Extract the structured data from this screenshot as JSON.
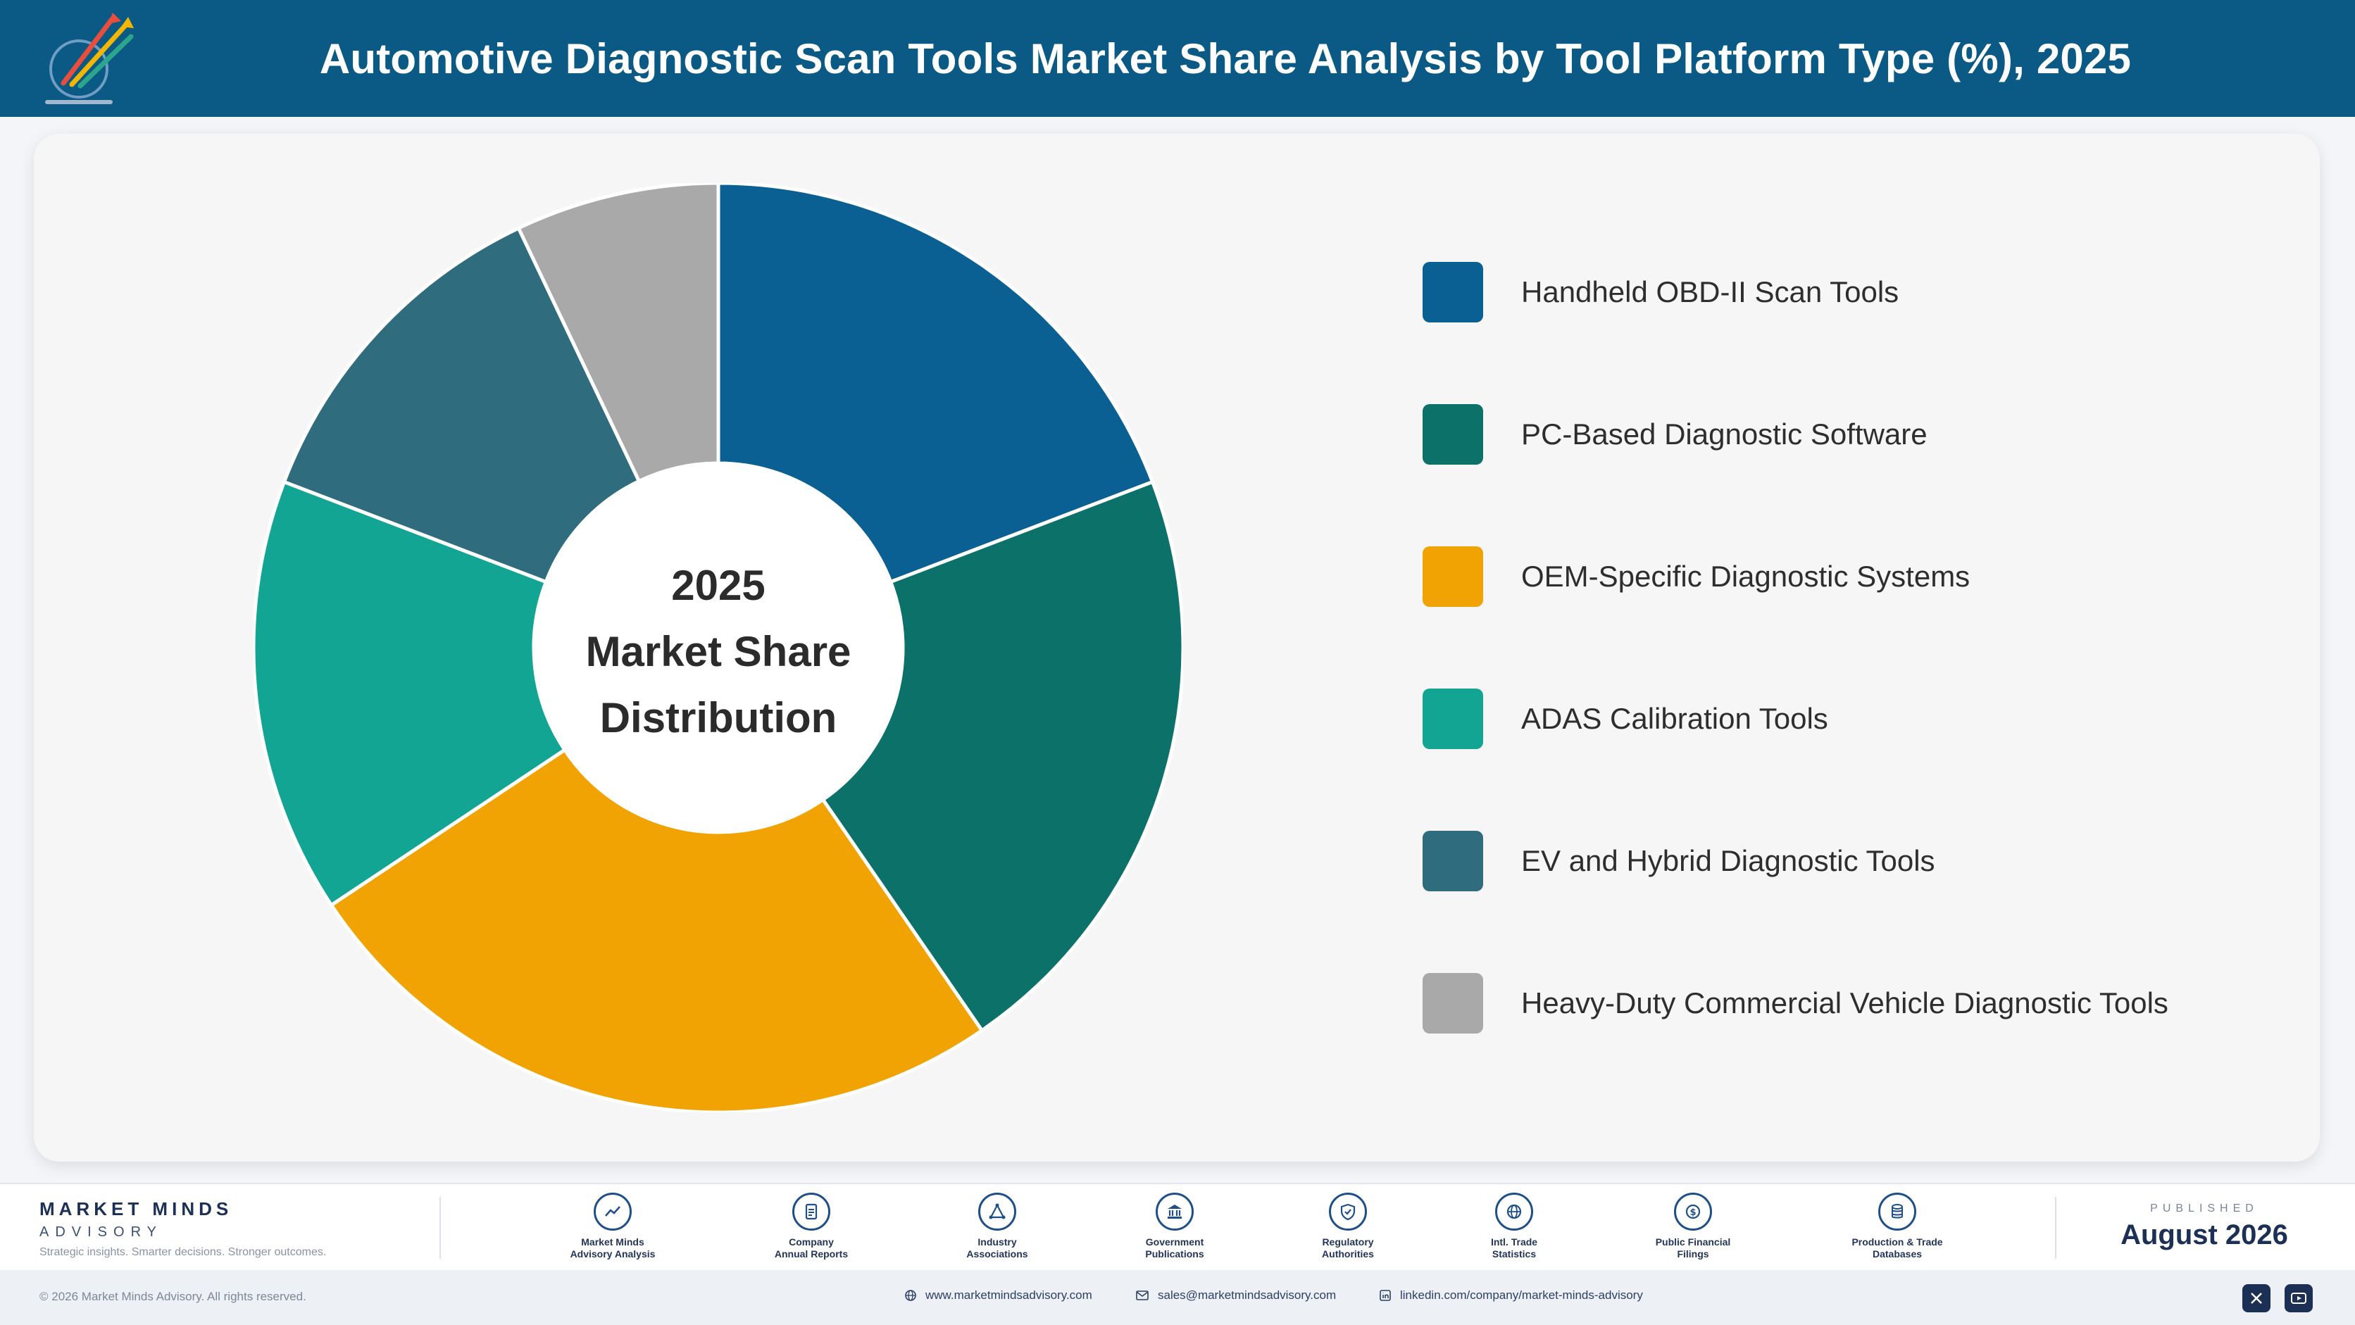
{
  "header": {
    "title": "Automotive Diagnostic Scan Tools Market Share Analysis by Tool Platform Type (%), 2025",
    "logo_icon": "market-minds-logo-icon"
  },
  "center_label": {
    "line1": "2025",
    "line2": "Market Share",
    "line3": "Distribution"
  },
  "chart_data": {
    "type": "pie",
    "title": "Automotive Diagnostic Scan Tools Market Share Analysis by Tool Platform Type (%), 2025",
    "donut": true,
    "start_angle_deg": 0,
    "direction": "clockwise",
    "legend_position": "right",
    "categories": [
      "Handheld OBD-II Scan Tools",
      "PC-Based Diagnostic Software",
      "OEM-Specific Diagnostic Systems",
      "ADAS Calibration Tools",
      "EV and Hybrid Diagnostic Tools",
      "Heavy-Duty Commercial Vehicle Diagnostic Tools"
    ],
    "values": [
      19,
      21,
      25,
      15,
      12,
      7
    ],
    "colors": [
      "#0a5f93",
      "#0b7169",
      "#f0a302",
      "#12a593",
      "#2f6c7e",
      "#a9a9a9"
    ]
  },
  "footer": {
    "brand_name": "MARKET MINDS",
    "brand_sub": "ADVISORY",
    "tagline": "Strategic insights. Smarter decisions. Stronger outcomes.",
    "sources": [
      {
        "line1": "Market Minds",
        "line2": "Advisory Analysis",
        "icon": "trend-chart-icon"
      },
      {
        "line1": "Company",
        "line2": "Annual Reports",
        "icon": "document-icon"
      },
      {
        "line1": "Industry",
        "line2": "Associations",
        "icon": "network-icon"
      },
      {
        "line1": "Government",
        "line2": "Publications",
        "icon": "government-building-icon"
      },
      {
        "line1": "Regulatory",
        "line2": "Authorities",
        "icon": "shield-check-icon"
      },
      {
        "line1": "Intl. Trade",
        "line2": "Statistics",
        "icon": "globe-icon"
      },
      {
        "line1": "Public Financial",
        "line2": "Filings",
        "icon": "dollar-coin-icon"
      },
      {
        "line1": "Production & Trade",
        "line2": "Databases",
        "icon": "database-icon"
      }
    ],
    "published_label": "PUBLISHED",
    "published_date": "August 2026"
  },
  "bottom": {
    "copyright": "© 2026 Market Minds Advisory. All rights reserved.",
    "website": "www.marketmindsadvisory.com",
    "email": "sales@marketmindsadvisory.com",
    "linkedin": "linkedin.com/company/market-minds-advisory",
    "social_icons": [
      "x-icon",
      "youtube-icon"
    ]
  }
}
